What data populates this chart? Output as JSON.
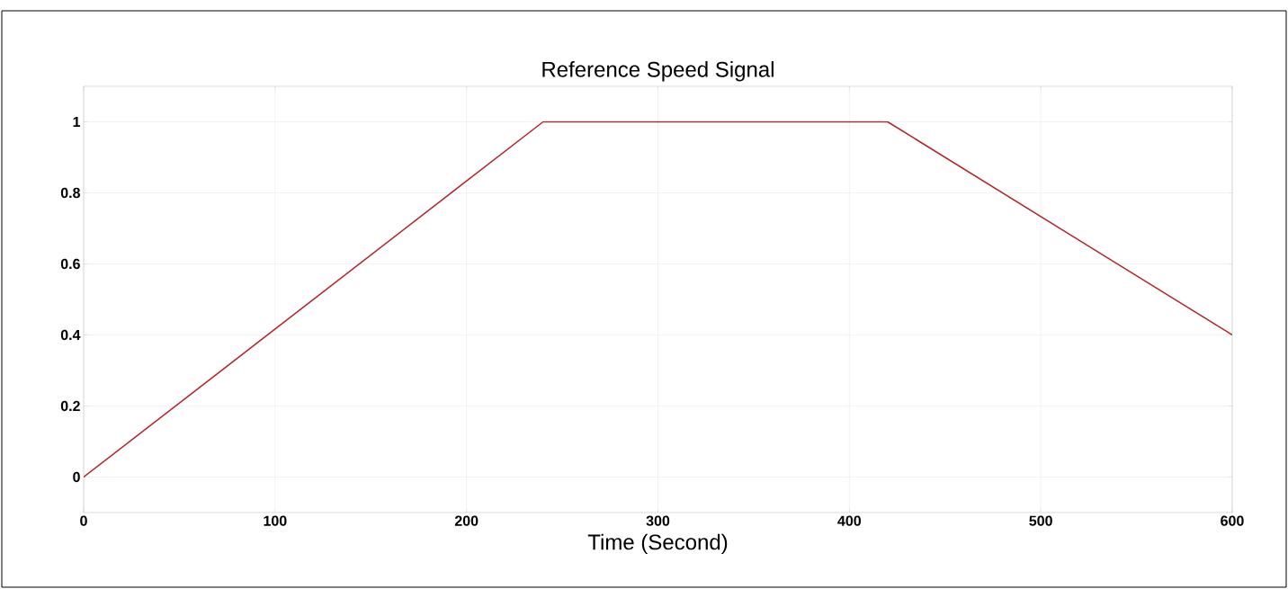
{
  "chart_data": {
    "type": "line",
    "title": "Reference Speed Signal",
    "xlabel": "Time (Second)",
    "x": [
      0,
      240,
      420,
      600
    ],
    "series": [
      {
        "color": "#b5262b",
        "values": [
          0,
          1,
          1,
          0.4
        ]
      }
    ],
    "xlim": [
      0,
      600
    ],
    "ylim": [
      -0.1,
      1.1
    ],
    "xticks": [
      0,
      100,
      200,
      300,
      400,
      500,
      600
    ],
    "yticks": [
      0,
      0.2,
      0.4,
      0.6,
      0.8,
      1
    ],
    "grid": true
  }
}
